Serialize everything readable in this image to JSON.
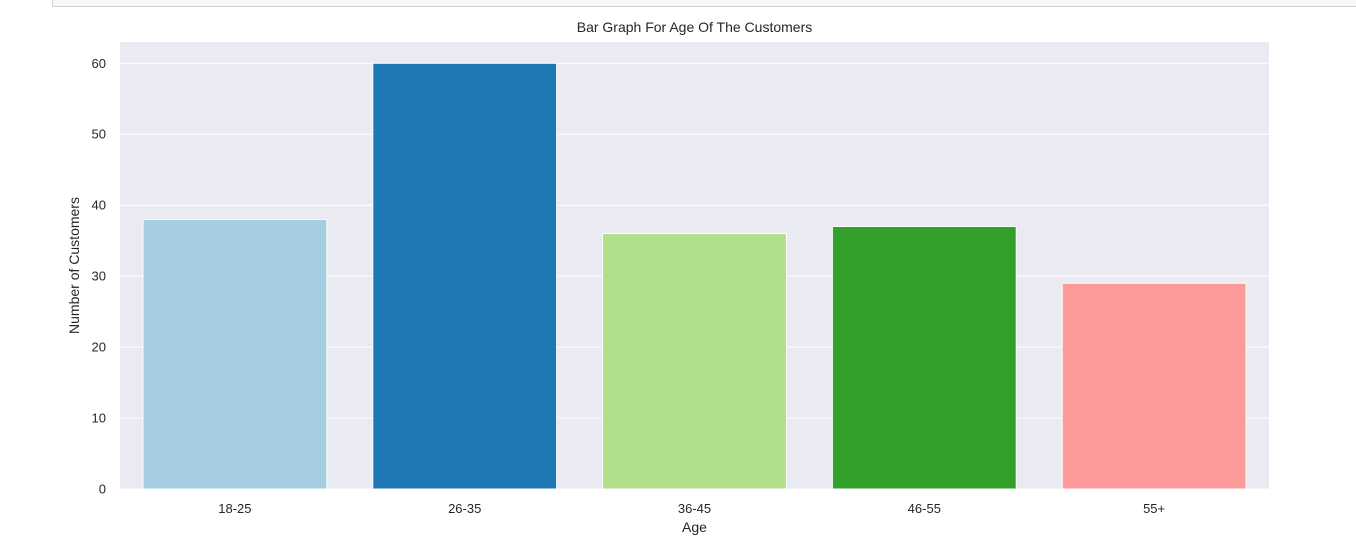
{
  "colors": {
    "plot_background": "#EAEAF2",
    "grid": "#FFFFFF",
    "bars": [
      "#A6CEE3",
      "#1F78B4",
      "#B2DF8A",
      "#33A02C",
      "#FB9A99"
    ]
  },
  "chart_data": {
    "type": "bar",
    "title": "Bar Graph For Age Of The Customers",
    "xlabel": "Age",
    "ylabel": "Number of Customers",
    "categories": [
      "18-25",
      "26-35",
      "36-45",
      "46-55",
      "55+"
    ],
    "values": [
      38,
      60,
      36,
      37,
      29
    ],
    "ylim": [
      0,
      63
    ],
    "yticks": [
      0,
      10,
      20,
      30,
      40,
      50,
      60
    ],
    "grid": true,
    "legend": "none"
  }
}
